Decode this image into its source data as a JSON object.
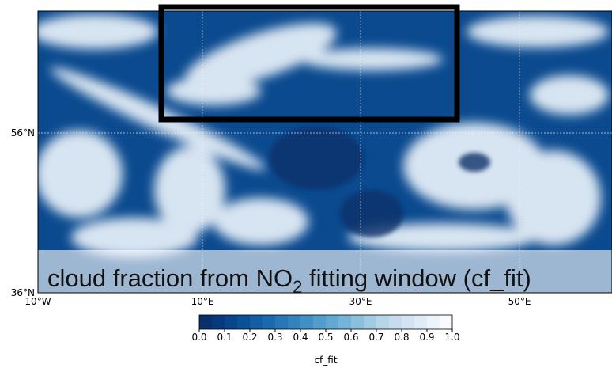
{
  "map": {
    "lat_labels": [
      "56°N",
      "36°N"
    ],
    "lon_labels": [
      "10°W",
      "10°E",
      "30°E",
      "50°E"
    ]
  },
  "caption": {
    "before": "cloud fraction from NO",
    "subscript": "2",
    "after": " fitting window (cf_fit)"
  },
  "colorbar": {
    "ticks": [
      "0.0",
      "0.1",
      "0.2",
      "0.3",
      "0.4",
      "0.5",
      "0.6",
      "0.7",
      "0.8",
      "0.9",
      "1.0"
    ],
    "label": "cf_fit",
    "colors": [
      "#08306b",
      "#08397c",
      "#08458a",
      "#0b5198",
      "#135ea4",
      "#1b6aaf",
      "#2777b8",
      "#3383be",
      "#4190c5",
      "#519ccb",
      "#63a8d3",
      "#75b4d8",
      "#8bc0dd",
      "#a0cbe2",
      "#b4d6e8",
      "#c6dbef",
      "#d3e3f3",
      "#dfebf7",
      "#ebf3fb",
      "#f7fbff"
    ]
  }
}
